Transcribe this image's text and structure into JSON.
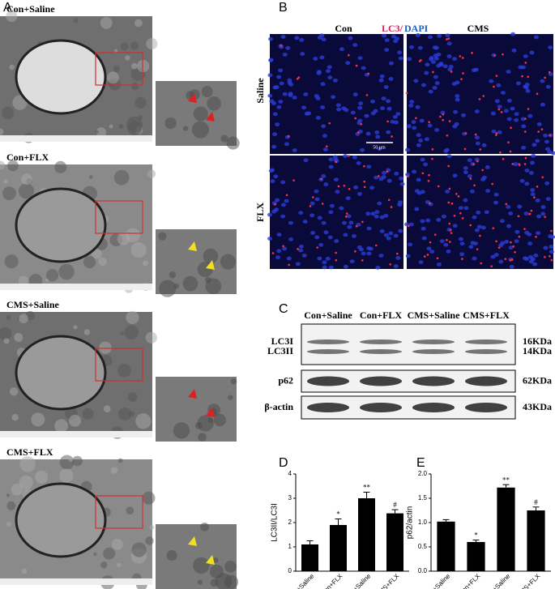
{
  "panels": {
    "a": {
      "label": "A",
      "images": [
        "Con+Saline",
        "Con+FLX",
        "CMS+Saline",
        "CMS+FLX"
      ]
    },
    "b": {
      "label": "B",
      "columns": [
        "Con",
        "CMS"
      ],
      "stain": {
        "lc3": "LC3/",
        "dapi": "DAPI"
      },
      "rows": [
        "Saline",
        "FLX"
      ],
      "scale_bar": "50 μm"
    },
    "c": {
      "label": "C",
      "lanes": [
        "Con+Saline",
        "Con+FLX",
        "CMS+Saline",
        "CMS+FLX"
      ],
      "bands": [
        {
          "names": [
            "LC3I",
            "LC3II"
          ],
          "sizes": [
            "16KDa",
            "14KDa"
          ]
        },
        {
          "names": [
            "p62"
          ],
          "sizes": [
            "62KDa"
          ]
        },
        {
          "names": [
            "β-actin"
          ],
          "sizes": [
            "43KDa"
          ]
        }
      ]
    },
    "d": {
      "label": "D"
    },
    "e": {
      "label": "E"
    }
  },
  "chart_data": [
    {
      "type": "bar",
      "y_label": "LC3II/LC3I",
      "categories": [
        "Con+Saline",
        "Con+FLX",
        "CMS+Saline",
        "CMS+FLX"
      ],
      "values": [
        1.1,
        1.9,
        3.0,
        2.38
      ],
      "errors": [
        0.15,
        0.25,
        0.25,
        0.15
      ],
      "significance": [
        null,
        "*",
        "**",
        "#"
      ],
      "color": "#000000",
      "ylim": [
        0,
        4
      ],
      "yticks": [
        0,
        1,
        2,
        3,
        4
      ]
    },
    {
      "type": "bar",
      "y_label": "p62/actin",
      "categories": [
        "Con+Saline",
        "Con+FLX",
        "CMS+Saline",
        "CMS+FLX"
      ],
      "values": [
        1.02,
        0.6,
        1.72,
        1.25
      ],
      "errors": [
        0.04,
        0.04,
        0.06,
        0.07
      ],
      "significance": [
        null,
        "*",
        "**",
        "#"
      ],
      "color": "#000000",
      "ylim": [
        0,
        2
      ],
      "yticks": [
        {
          "value": 0,
          "label": "0.0"
        },
        0.5,
        {
          "value": 1,
          "label": "1.0"
        },
        1.5,
        {
          "value": 2,
          "label": "2.0"
        }
      ]
    }
  ]
}
